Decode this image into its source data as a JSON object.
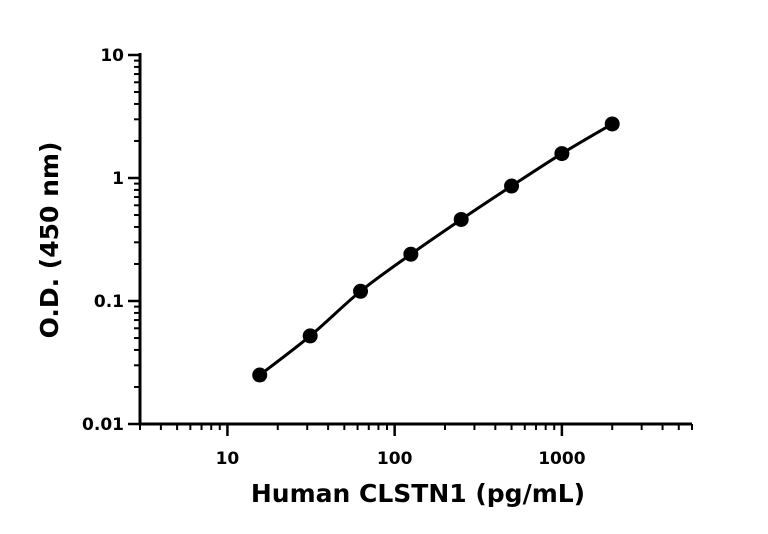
{
  "chart_data": {
    "type": "scatter",
    "xlabel": "Human CLSTN1 (pg/mL)",
    "ylabel": "O.D. (450 nm)",
    "x_scale": "log",
    "y_scale": "log",
    "xlim": [
      3,
      6000
    ],
    "ylim": [
      0.01,
      10
    ],
    "x_ticks": [
      {
        "value": 10,
        "label": "10"
      },
      {
        "value": 100,
        "label": "100"
      },
      {
        "value": 1000,
        "label": "1000"
      }
    ],
    "y_ticks": [
      {
        "value": 0.01,
        "label": "0.01"
      },
      {
        "value": 0.1,
        "label": "0.1"
      },
      {
        "value": 1,
        "label": "1"
      },
      {
        "value": 10,
        "label": "10"
      }
    ],
    "grid": false,
    "legend": "none",
    "series": [
      {
        "x": [
          15.6,
          31.25,
          62.5,
          125,
          250,
          500,
          1000,
          2000
        ],
        "y": [
          0.025,
          0.052,
          0.12,
          0.24,
          0.46,
          0.86,
          1.58,
          2.75
        ],
        "marker": "circle",
        "line": "fitted curve",
        "color": "#000000"
      }
    ]
  }
}
